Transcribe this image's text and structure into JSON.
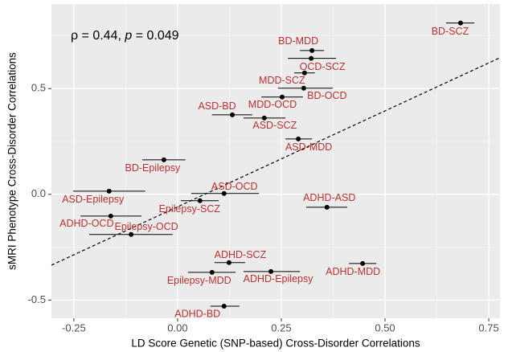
{
  "chart_data": {
    "type": "scatter",
    "annotation": [
      "ρ = 0.44, ",
      "p",
      " = 0.049"
    ],
    "x_label": "LD Score Genetic (SNP-based) Cross-Disorder Correlations",
    "y_label": "sMRI Phenotype Cross-Disorder Correlations",
    "labels": [
      "BD-SCZ",
      "BD-MDD",
      "OCD-SCZ",
      "MDD-SCZ",
      "BD-OCD",
      "MDD-OCD",
      "ASD-BD",
      "ASD-SCZ",
      "ASD-MDD",
      "BD-Epilepsy",
      "ASD-Epilepsy",
      "ASD-OCD",
      "Epilepsy-SCZ",
      "ADHD-ASD",
      "ADHD-OCD",
      "Epilepsy-OCD",
      "ADHD-SCZ",
      "ADHD-MDD",
      "ADHD-Epilepsy",
      "Epilepsy-MDD",
      "ADHD-BD"
    ],
    "x": [
      0.682,
      0.324,
      0.322,
      0.306,
      0.304,
      0.252,
      0.132,
      0.209,
      0.291,
      -0.033,
      -0.165,
      0.112,
      0.054,
      0.36,
      -0.161,
      -0.112,
      0.124,
      0.446,
      0.225,
      0.083,
      0.112
    ],
    "values": [
      0.81,
      0.68,
      0.643,
      0.574,
      0.502,
      0.46,
      0.376,
      0.361,
      0.262,
      0.163,
      0.015,
      0.004,
      -0.03,
      -0.061,
      -0.103,
      -0.19,
      -0.323,
      -0.327,
      -0.365,
      -0.369,
      -0.529
    ],
    "xerr_lower": [
      0.647,
      0.295,
      0.266,
      0.281,
      0.242,
      0.202,
      0.083,
      0.159,
      0.26,
      -0.085,
      -0.252,
      0.033,
      0.008,
      0.31,
      -0.234,
      -0.213,
      0.089,
      0.413,
      0.159,
      0.025,
      0.079
    ],
    "xerr_upper": [
      0.715,
      0.353,
      0.382,
      0.331,
      0.374,
      0.302,
      0.18,
      0.26,
      0.324,
      0.019,
      -0.078,
      0.196,
      0.099,
      0.409,
      -0.087,
      -0.012,
      0.163,
      0.479,
      0.295,
      0.14,
      0.149
    ],
    "trend_line": {
      "x": [
        -0.304,
        0.777
      ],
      "y": [
        -0.335,
        0.646
      ]
    },
    "point_color": "#000000",
    "label_color": "#b8312f",
    "xlim": [
      -0.304,
      0.777
    ],
    "ylim": [
      -0.586,
      0.9
    ],
    "xticks": [
      -0.25,
      {
        "value": 0,
        "label": "0.00"
      },
      0.25,
      {
        "value": 0.5,
        "label": "0.50"
      },
      0.75
    ],
    "yticks": [
      -0.5,
      {
        "value": 0,
        "label": "0.0"
      },
      0.5
    ],
    "x_minor_ticks": [
      -0.125,
      0.125,
      0.375,
      0.625
    ],
    "y_minor_ticks": [
      -0.25,
      0.25,
      0.75
    ],
    "grid": true
  }
}
